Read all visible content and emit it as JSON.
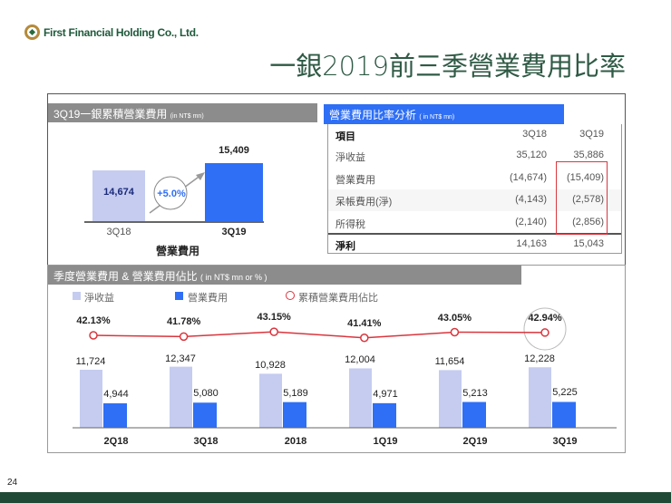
{
  "header": {
    "company": "First Financial Holding Co., Ltd.",
    "title": "一銀2019前三季營業費用比率"
  },
  "left_panel": {
    "title": "3Q19一銀累積營業費用",
    "unit": "(in NT$ mn)",
    "growth": "+5.0%",
    "xlabel": "營業費用"
  },
  "table": {
    "title": "營業費用比率分析",
    "unit": "( in NT$ mn)",
    "columns": [
      "項目",
      "3Q18",
      "3Q19"
    ],
    "rows": [
      [
        "淨收益",
        "35,120",
        "35,886"
      ],
      [
        "營業費用",
        "(14,674)",
        "(15,409)"
      ],
      [
        "呆帳費用(淨)",
        "(4,143)",
        "(2,578)"
      ],
      [
        "所得稅",
        "(2,140)",
        "(2,856)"
      ]
    ],
    "total": [
      "淨利",
      "14,163",
      "15,043"
    ],
    "highlight_color": "#d9363e"
  },
  "bottom_panel": {
    "title": "季度營業費用 & 營業費用佔比",
    "unit": "( in NT$ mn or % )"
  },
  "colors": {
    "light_bar": "#c5ccf0",
    "dark_bar": "#2f6ff5",
    "line": "#d9363e",
    "header_gray": "#8c8c8c",
    "footer": "#1f4a36"
  },
  "page_number": "24",
  "chart_data": [
    {
      "type": "bar",
      "categories": [
        "3Q18",
        "3Q19"
      ],
      "values": [
        14674,
        15409
      ],
      "xlabel": "營業費用"
    },
    {
      "type": "bar+line",
      "categories": [
        "2Q18",
        "3Q18",
        "2018",
        "1Q19",
        "2Q19",
        "3Q19"
      ],
      "series": [
        {
          "name": "淨收益",
          "type": "bar",
          "values": [
            11724,
            12347,
            10928,
            12004,
            11654,
            12228
          ],
          "labels": [
            "11,724",
            "12,347",
            "10,928",
            "12,004",
            "11,654",
            "12,228"
          ]
        },
        {
          "name": "營業費用",
          "type": "bar",
          "values": [
            4944,
            5080,
            5189,
            4971,
            5213,
            5225
          ],
          "labels": [
            "4,944",
            "5,080",
            "5,189",
            "4,971",
            "5,213",
            "5,225"
          ]
        },
        {
          "name": "累積營業費用佔比",
          "type": "line",
          "values": [
            42.13,
            41.78,
            43.15,
            41.41,
            43.05,
            42.94
          ],
          "labels": [
            "42.13%",
            "41.78%",
            "43.15%",
            "41.41%",
            "43.05%",
            "42.94%"
          ]
        }
      ],
      "legend": "top-left",
      "highlight": "3Q19"
    }
  ]
}
